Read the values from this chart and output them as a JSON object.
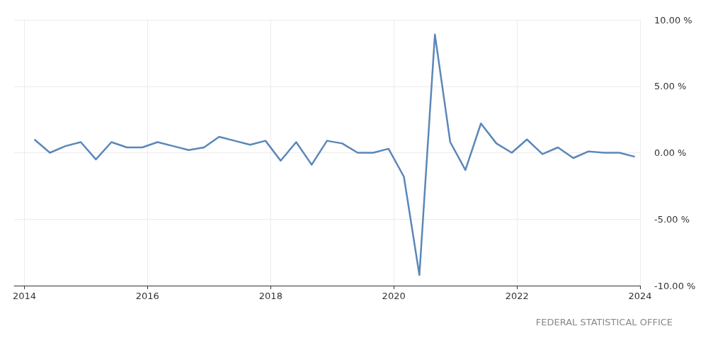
{
  "chart_data": {
    "type": "line",
    "color": "#5b87b8",
    "grid": true,
    "marker": "none",
    "line_style": "solid",
    "x": [
      "2014-03",
      "2014-06",
      "2014-09",
      "2014-12",
      "2015-03",
      "2015-06",
      "2015-09",
      "2015-12",
      "2016-03",
      "2016-06",
      "2016-09",
      "2016-12",
      "2017-03",
      "2017-06",
      "2017-09",
      "2017-12",
      "2018-03",
      "2018-06",
      "2018-09",
      "2018-12",
      "2019-03",
      "2019-06",
      "2019-09",
      "2019-12",
      "2020-03",
      "2020-06",
      "2020-09",
      "2020-12",
      "2021-03",
      "2021-06",
      "2021-09",
      "2021-12",
      "2022-03",
      "2022-06",
      "2022-09",
      "2022-12",
      "2023-03",
      "2023-06",
      "2023-09",
      "2023-12"
    ],
    "values": [
      1.0,
      0.0,
      0.5,
      0.8,
      -0.5,
      0.8,
      0.4,
      0.4,
      0.8,
      0.5,
      0.2,
      0.4,
      1.2,
      0.9,
      0.6,
      0.9,
      -0.6,
      0.8,
      -0.9,
      0.9,
      0.7,
      0.0,
      0.0,
      0.3,
      -1.8,
      -9.2,
      8.9,
      0.8,
      -1.3,
      2.2,
      0.7,
      0.0,
      1.0,
      -0.1,
      0.4,
      -0.4,
      0.1,
      0.0,
      0.0,
      -0.3
    ],
    "xlim": [
      "2013-11",
      "2024-01"
    ],
    "xticks": [
      "2014",
      "2016",
      "2018",
      "2020",
      "2022",
      "2024"
    ],
    "ylim": [
      -10,
      10
    ],
    "yticks": [
      {
        "value": -10,
        "label": "-10.00 %"
      },
      {
        "value": -5,
        "label": "-5.00 %"
      },
      {
        "value": 0,
        "label": "0.00 %"
      },
      {
        "value": 5,
        "label": "5.00 %"
      },
      {
        "value": 10,
        "label": "10.00 %"
      }
    ],
    "annotations": [
      "FEDERAL STATISTICAL OFFICE"
    ]
  }
}
